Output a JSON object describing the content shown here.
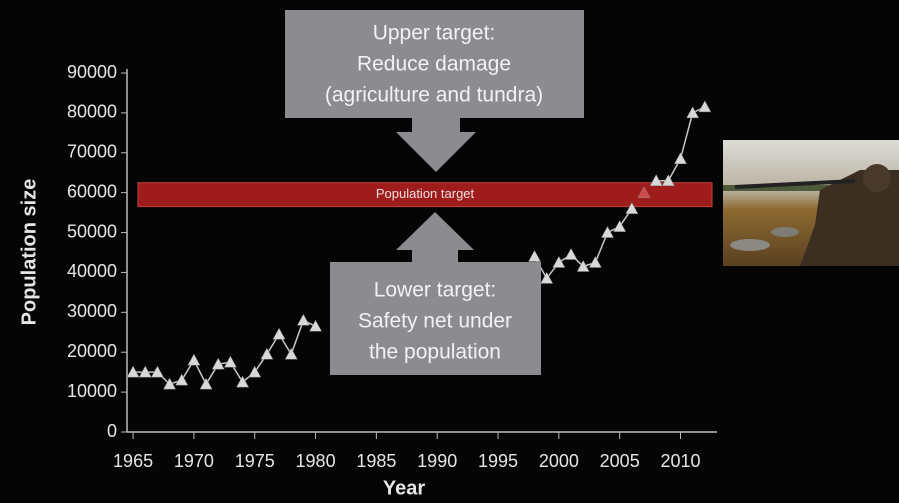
{
  "chart_data": {
    "type": "line",
    "x": [
      1965,
      1966,
      1967,
      1968,
      1969,
      1970,
      1971,
      1972,
      1973,
      1974,
      1975,
      1976,
      1977,
      1978,
      1979,
      1980,
      1981,
      1982,
      1983,
      1984,
      1985,
      1986,
      1987,
      1988,
      1989,
      1990,
      1991,
      1992,
      1993,
      1994,
      1995,
      1996,
      1997,
      1998,
      1999,
      2000,
      2001,
      2002,
      2003,
      2004,
      2005,
      2006,
      2007,
      2008,
      2009,
      2010,
      2011,
      2012
    ],
    "series": [
      {
        "color": "#c8c8c8",
        "values": [
          15000,
          15000,
          15000,
          12000,
          13000,
          18000,
          12000,
          17000,
          17500,
          12500,
          15000,
          19500,
          24500,
          19500,
          28000,
          26500,
          null,
          null,
          null,
          null,
          null,
          null,
          null,
          null,
          null,
          null,
          null,
          null,
          null,
          null,
          null,
          null,
          null,
          44000,
          38500,
          42500,
          44500,
          41500,
          42500,
          50000,
          51500,
          56000,
          60000,
          63000,
          63000,
          68500,
          80000,
          81500
        ]
      }
    ],
    "xlim": [
      1964.5,
      2013
    ],
    "ylim": [
      0,
      90000
    ],
    "xticks": [
      1965,
      1970,
      1975,
      1980,
      1985,
      1990,
      1995,
      2000,
      2005,
      2010
    ],
    "yticks": [
      0,
      10000,
      20000,
      30000,
      40000,
      50000,
      60000,
      70000,
      80000,
      90000
    ],
    "x_label": "Year",
    "y_label": "Population size",
    "target_band": {
      "label": "Population target",
      "range": [
        56500,
        62500
      ],
      "color": "#9e1c1c"
    },
    "annotations": [
      {
        "lines": [
          "Upper target:",
          "Reduce damage",
          "(agriculture and tundra)"
        ]
      },
      {
        "lines": [
          "Lower target:",
          "Safety net under",
          "the population"
        ]
      }
    ]
  }
}
